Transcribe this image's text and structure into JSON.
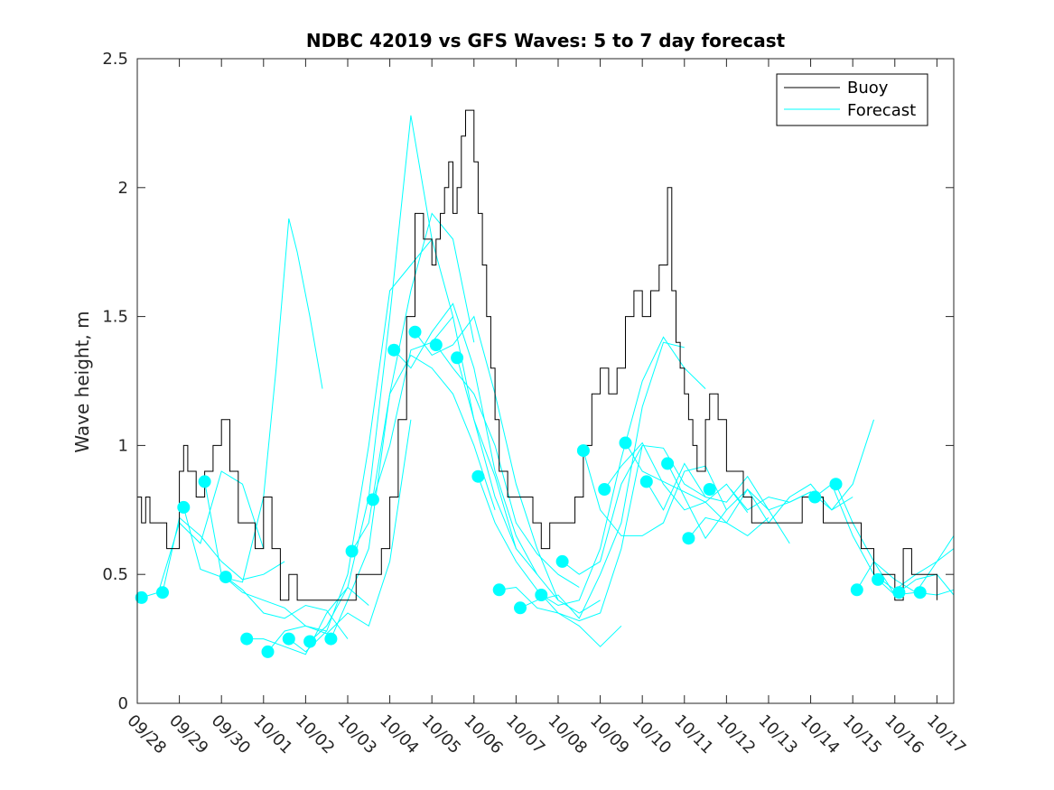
{
  "chart_data": {
    "type": "line",
    "title": "NDBC 42019 vs GFS Waves: 5 to 7 day forecast",
    "xlabel": "",
    "ylabel": "Wave height, m",
    "x_unit": "days since 09/28 00:00",
    "xlim": [
      0,
      19.4
    ],
    "ylim": [
      0,
      2.5
    ],
    "yticks": [
      0,
      0.5,
      1,
      1.5,
      2,
      2.5
    ],
    "ytick_labels": [
      "0",
      "0.5",
      "1",
      "1.5",
      "2",
      "2.5"
    ],
    "xticks": [
      0,
      1,
      2,
      3,
      4,
      5,
      6,
      7,
      8,
      9,
      10,
      11,
      12,
      13,
      14,
      15,
      16,
      17,
      18,
      19
    ],
    "xtick_labels": [
      "09/28",
      "09/29",
      "09/30",
      "10/01",
      "10/02",
      "10/03",
      "10/04",
      "10/05",
      "10/06",
      "10/07",
      "10/08",
      "10/09",
      "10/10",
      "10/11",
      "10/12",
      "10/13",
      "10/14",
      "10/15",
      "10/16",
      "10/17"
    ],
    "legend": {
      "position": "top-right",
      "entries": [
        "Buoy",
        "Forecast"
      ]
    },
    "colors": {
      "buoy": "#000000",
      "forecast": "#00ffff",
      "axes": "#262626"
    },
    "buoy": {
      "name": "Buoy",
      "x": [
        0,
        0.1,
        0.2,
        0.3,
        0.5,
        0.7,
        0.8,
        1.0,
        1.1,
        1.2,
        1.3,
        1.4,
        1.6,
        1.8,
        2.0,
        2.2,
        2.4,
        2.6,
        2.8,
        3.0,
        3.2,
        3.4,
        3.6,
        3.8,
        4.0,
        4.3,
        4.6,
        4.9,
        5.2,
        5.5,
        5.8,
        6.0,
        6.2,
        6.4,
        6.6,
        6.8,
        7.0,
        7.1,
        7.2,
        7.3,
        7.4,
        7.5,
        7.6,
        7.7,
        7.8,
        7.9,
        8.0,
        8.1,
        8.2,
        8.3,
        8.4,
        8.5,
        8.6,
        8.8,
        9.0,
        9.2,
        9.4,
        9.6,
        9.8,
        10.0,
        10.2,
        10.4,
        10.6,
        10.8,
        11.0,
        11.2,
        11.4,
        11.6,
        11.8,
        12.0,
        12.2,
        12.4,
        12.6,
        12.7,
        12.8,
        12.9,
        13.0,
        13.1,
        13.2,
        13.3,
        13.4,
        13.5,
        13.6,
        13.8,
        14.0,
        14.2,
        14.4,
        14.6,
        14.8,
        15.0,
        15.2,
        15.4,
        15.6,
        15.8,
        16.0,
        16.3,
        16.6,
        16.9,
        17.2,
        17.5,
        17.8,
        18.0,
        18.2,
        18.4,
        18.6,
        18.8,
        19.0
      ],
      "values": [
        0.8,
        0.7,
        0.8,
        0.7,
        0.7,
        0.6,
        0.6,
        0.9,
        1.0,
        0.9,
        0.9,
        0.8,
        0.9,
        1.0,
        1.1,
        0.9,
        0.7,
        0.7,
        0.6,
        0.8,
        0.6,
        0.4,
        0.5,
        0.4,
        0.4,
        0.4,
        0.4,
        0.4,
        0.5,
        0.5,
        0.6,
        0.8,
        1.1,
        1.5,
        1.9,
        1.8,
        1.7,
        1.8,
        1.9,
        2.0,
        2.1,
        1.9,
        2.0,
        2.2,
        2.3,
        2.3,
        2.1,
        1.9,
        1.7,
        1.5,
        1.3,
        1.1,
        0.9,
        0.8,
        0.8,
        0.8,
        0.7,
        0.6,
        0.7,
        0.7,
        0.7,
        0.8,
        1.0,
        1.2,
        1.3,
        1.2,
        1.3,
        1.5,
        1.6,
        1.5,
        1.6,
        1.7,
        2.0,
        1.6,
        1.4,
        1.3,
        1.2,
        1.1,
        1.0,
        0.9,
        0.9,
        1.1,
        1.2,
        1.1,
        0.9,
        0.9,
        0.8,
        0.7,
        0.7,
        0.7,
        0.7,
        0.7,
        0.7,
        0.8,
        0.8,
        0.7,
        0.7,
        0.7,
        0.6,
        0.5,
        0.5,
        0.4,
        0.6,
        0.5,
        0.5,
        0.5,
        0.4
      ]
    },
    "forecast_series": [
      {
        "name": "Forecast",
        "x": [
          0.1,
          0.5,
          1.0,
          1.5,
          2.0,
          2.5,
          3.0
        ],
        "values": [
          0.41,
          0.43,
          0.7,
          0.62,
          0.9,
          0.85,
          0.6
        ]
      },
      {
        "name": "Forecast",
        "x": [
          0.6,
          1.0,
          1.5,
          2.0,
          2.5,
          3.0,
          3.5
        ],
        "values": [
          0.43,
          0.72,
          0.65,
          0.55,
          0.48,
          0.5,
          0.55
        ]
      },
      {
        "name": "Forecast",
        "x": [
          1.1,
          1.5,
          2.0,
          2.5,
          3.0,
          3.3,
          3.6,
          3.8,
          4.1,
          4.4
        ],
        "values": [
          0.76,
          0.52,
          0.49,
          0.47,
          0.8,
          1.3,
          1.88,
          1.75,
          1.5,
          1.22
        ]
      },
      {
        "name": "Forecast",
        "x": [
          1.6,
          2.0,
          2.5,
          3.0,
          3.5,
          4.0,
          4.5
        ],
        "values": [
          0.86,
          0.5,
          0.43,
          0.4,
          0.37,
          0.3,
          0.28
        ]
      },
      {
        "name": "Forecast",
        "x": [
          2.1,
          2.5,
          3.0,
          3.5,
          4.0,
          4.5,
          5.0
        ],
        "values": [
          0.49,
          0.44,
          0.35,
          0.33,
          0.38,
          0.36,
          0.25
        ]
      },
      {
        "name": "Forecast",
        "x": [
          2.6,
          3.0,
          3.5,
          4.0,
          4.5,
          5.0,
          5.5
        ],
        "values": [
          0.25,
          0.25,
          0.22,
          0.19,
          0.35,
          0.45,
          0.38
        ]
      },
      {
        "name": "Forecast",
        "x": [
          3.1,
          3.5,
          4.0,
          4.5,
          5.0,
          5.5,
          6.0,
          6.5
        ],
        "values": [
          0.2,
          0.28,
          0.3,
          0.27,
          0.35,
          0.3,
          0.55,
          1.1
        ]
      },
      {
        "name": "Forecast",
        "x": [
          3.6,
          4.0,
          4.5,
          5.0,
          5.5,
          6.0,
          6.5,
          7.0
        ],
        "values": [
          0.25,
          0.2,
          0.28,
          0.5,
          1.0,
          1.6,
          1.7,
          1.8
        ]
      },
      {
        "name": "Forecast",
        "x": [
          4.1,
          4.5,
          5.0,
          5.5,
          6.0,
          6.5,
          7.0,
          7.5
        ],
        "values": [
          0.24,
          0.3,
          0.45,
          0.8,
          1.5,
          2.28,
          1.8,
          1.5
        ]
      },
      {
        "name": "Forecast",
        "x": [
          4.6,
          5.0,
          5.5,
          6.0,
          6.5,
          7.0,
          7.5,
          8.0
        ],
        "values": [
          0.25,
          0.4,
          0.6,
          1.2,
          1.6,
          1.9,
          1.8,
          1.4
        ]
      },
      {
        "name": "Forecast",
        "x": [
          5.1,
          5.5,
          6.0,
          6.5,
          7.0,
          7.5,
          8.0,
          8.5
        ],
        "values": [
          0.59,
          0.7,
          1.2,
          1.35,
          1.3,
          1.2,
          1.0,
          0.75
        ]
      },
      {
        "name": "Forecast",
        "x": [
          5.6,
          6.0,
          6.5,
          7.0,
          7.5,
          8.0,
          8.5,
          9.0
        ],
        "values": [
          0.79,
          1.0,
          1.37,
          1.4,
          1.5,
          1.1,
          0.8,
          0.6
        ]
      },
      {
        "name": "Forecast",
        "x": [
          6.1,
          6.5,
          7.0,
          7.5,
          8.0,
          8.5,
          9.0,
          9.5
        ],
        "values": [
          1.37,
          1.3,
          1.44,
          1.55,
          1.3,
          0.9,
          0.65,
          0.5
        ]
      },
      {
        "name": "Forecast",
        "x": [
          6.6,
          7.0,
          7.5,
          8.0,
          8.5,
          9.0,
          9.5,
          10.0
        ],
        "values": [
          1.44,
          1.35,
          1.39,
          1.5,
          1.2,
          0.85,
          0.6,
          0.4
        ]
      },
      {
        "name": "Forecast",
        "x": [
          7.1,
          7.5,
          8.0,
          8.5,
          9.0,
          9.5,
          10.0,
          10.5
        ],
        "values": [
          1.39,
          1.3,
          1.2,
          1.0,
          0.7,
          0.58,
          0.5,
          0.45
        ]
      },
      {
        "name": "Forecast",
        "x": [
          7.6,
          8.0,
          8.5,
          9.0,
          9.5,
          10.0,
          10.5,
          11.0
        ],
        "values": [
          1.34,
          1.1,
          0.88,
          0.6,
          0.5,
          0.4,
          0.35,
          0.4
        ]
      },
      {
        "name": "Forecast",
        "x": [
          8.1,
          8.5,
          9.0,
          9.5,
          10.0,
          10.5,
          11.0,
          11.5
        ],
        "values": [
          0.88,
          0.7,
          0.55,
          0.44,
          0.35,
          0.3,
          0.22,
          0.3
        ]
      },
      {
        "name": "Forecast",
        "x": [
          8.6,
          9.0,
          9.5,
          10.0,
          10.5,
          11.0,
          11.5,
          12.0
        ],
        "values": [
          0.44,
          0.45,
          0.37,
          0.35,
          0.32,
          0.35,
          0.6,
          1.0
        ]
      },
      {
        "name": "Forecast",
        "x": [
          9.1,
          9.5,
          10.0,
          10.5,
          11.0,
          11.5,
          12.0,
          12.5,
          13.0
        ],
        "values": [
          0.37,
          0.4,
          0.42,
          0.33,
          0.5,
          0.7,
          1.15,
          1.4,
          1.38
        ]
      },
      {
        "name": "Forecast",
        "x": [
          9.6,
          10.0,
          10.5,
          11.0,
          11.5,
          12.0,
          12.5,
          13.0,
          13.5
        ],
        "values": [
          0.42,
          0.38,
          0.4,
          0.6,
          0.95,
          1.25,
          1.42,
          1.3,
          1.22
        ]
      },
      {
        "name": "Forecast",
        "x": [
          10.1,
          10.5,
          11.0,
          11.5,
          12.0,
          12.5,
          13.0,
          13.5
        ],
        "values": [
          0.55,
          0.5,
          0.55,
          0.85,
          1.0,
          0.99,
          0.85,
          0.8
        ]
      },
      {
        "name": "Forecast",
        "x": [
          10.6,
          11.0,
          11.5,
          12.0,
          12.5,
          13.0,
          13.5,
          14.0
        ],
        "values": [
          0.98,
          0.75,
          0.65,
          0.65,
          0.7,
          0.9,
          0.92,
          0.75
        ]
      },
      {
        "name": "Forecast",
        "x": [
          11.1,
          11.5,
          12.0,
          12.5,
          13.0,
          13.5,
          14.0,
          14.5
        ],
        "values": [
          0.83,
          0.92,
          1.01,
          0.85,
          0.75,
          0.78,
          0.85,
          0.74
        ]
      },
      {
        "name": "Forecast",
        "x": [
          11.6,
          12.0,
          12.5,
          13.0,
          13.5,
          14.0,
          14.5,
          15.0
        ],
        "values": [
          1.01,
          0.9,
          0.86,
          0.82,
          0.78,
          0.7,
          0.65,
          0.72
        ]
      },
      {
        "name": "Forecast",
        "x": [
          12.1,
          12.5,
          13.0,
          13.5,
          14.0,
          14.5,
          15.0,
          15.5
        ],
        "values": [
          0.86,
          0.75,
          0.93,
          0.8,
          0.78,
          0.88,
          0.75,
          0.62
        ]
      },
      {
        "name": "Forecast",
        "x": [
          12.6,
          13.0,
          13.5,
          14.0,
          14.5,
          15.0,
          15.5,
          16.0
        ],
        "values": [
          0.93,
          0.8,
          0.64,
          0.75,
          0.83,
          0.75,
          0.78,
          0.82
        ]
      },
      {
        "name": "Forecast",
        "x": [
          13.1,
          13.5,
          14.0,
          14.5,
          15.0,
          15.5,
          16.0,
          16.5,
          17.0
        ],
        "values": [
          0.64,
          0.72,
          0.7,
          0.83,
          0.7,
          0.8,
          0.85,
          0.75,
          0.8
        ]
      },
      {
        "name": "Forecast",
        "x": [
          14.1,
          14.5,
          15.0,
          15.5,
          16.0,
          16.5,
          17.0,
          17.5
        ],
        "values": [
          0.83,
          0.75,
          0.8,
          0.78,
          0.82,
          0.75,
          0.85,
          1.1
        ]
      },
      {
        "name": "Forecast",
        "x": [
          16.1,
          16.5,
          17.0,
          17.5,
          18.0,
          18.5,
          19.0,
          19.4
        ],
        "values": [
          0.8,
          0.85,
          0.65,
          0.5,
          0.44,
          0.5,
          0.55,
          0.65
        ]
      },
      {
        "name": "Forecast",
        "x": [
          16.6,
          17.0,
          17.5,
          18.0,
          18.5,
          19.0,
          19.4
        ],
        "values": [
          0.85,
          0.7,
          0.55,
          0.42,
          0.48,
          0.5,
          0.42
        ]
      },
      {
        "name": "Forecast",
        "x": [
          17.1,
          17.5,
          18.0,
          18.5,
          19.0,
          19.4
        ],
        "values": [
          0.44,
          0.55,
          0.48,
          0.43,
          0.55,
          0.6
        ]
      },
      {
        "name": "Forecast",
        "x": [
          17.6,
          18.0,
          18.5,
          19.0,
          19.4
        ],
        "values": [
          0.48,
          0.42,
          0.43,
          0.42,
          0.44
        ]
      }
    ],
    "forecast_markers": {
      "name": "Forecast",
      "x": [
        0.1,
        0.6,
        1.1,
        1.6,
        2.1,
        2.6,
        3.1,
        3.6,
        4.1,
        4.6,
        5.1,
        5.6,
        6.1,
        6.6,
        7.1,
        7.6,
        8.1,
        8.6,
        9.1,
        9.6,
        10.1,
        10.6,
        11.1,
        11.6,
        12.1,
        12.6,
        13.1,
        13.6,
        16.1,
        16.6,
        17.1,
        17.6,
        18.1,
        18.6
      ],
      "values": [
        0.41,
        0.43,
        0.76,
        0.86,
        0.49,
        0.25,
        0.2,
        0.25,
        0.24,
        0.25,
        0.59,
        0.79,
        1.37,
        1.44,
        1.39,
        1.34,
        0.88,
        0.44,
        0.37,
        0.42,
        0.55,
        0.98,
        0.83,
        1.01,
        0.86,
        0.93,
        0.64,
        0.83,
        0.8,
        0.85,
        0.44,
        0.48,
        0.43,
        0.43
      ]
    }
  }
}
